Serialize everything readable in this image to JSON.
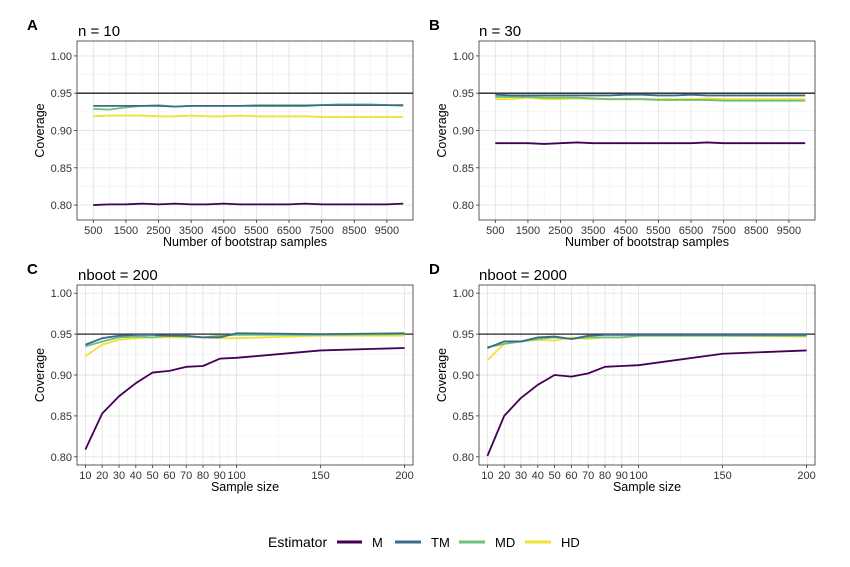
{
  "chart_data": [
    {
      "panel_label": "A",
      "title": "n = 10",
      "type": "line",
      "xlabel": "Number of bootstrap samples",
      "ylabel": "Coverage",
      "xlim": [
        0,
        10300
      ],
      "ylim": [
        0.78,
        1.02
      ],
      "xticks": [
        500,
        1500,
        2500,
        3500,
        4500,
        5500,
        6500,
        7500,
        8500,
        9500
      ],
      "yticks": [
        0.8,
        0.85,
        0.9,
        0.95,
        1.0
      ],
      "reference_line": 0.95,
      "x": [
        500,
        1000,
        1500,
        2000,
        2500,
        3000,
        3500,
        4000,
        4500,
        5000,
        5500,
        6000,
        6500,
        7000,
        7500,
        8000,
        8500,
        9000,
        9500,
        10000
      ],
      "series": [
        {
          "name": "M",
          "values": [
            0.8,
            0.801,
            0.801,
            0.802,
            0.801,
            0.802,
            0.801,
            0.801,
            0.802,
            0.801,
            0.801,
            0.801,
            0.801,
            0.802,
            0.801,
            0.801,
            0.801,
            0.801,
            0.801,
            0.802
          ]
        },
        {
          "name": "TM",
          "values": [
            0.933,
            0.933,
            0.933,
            0.933,
            0.933,
            0.932,
            0.933,
            0.933,
            0.933,
            0.933,
            0.933,
            0.933,
            0.933,
            0.933,
            0.934,
            0.934,
            0.934,
            0.934,
            0.934,
            0.934
          ]
        },
        {
          "name": "MD",
          "values": [
            0.929,
            0.928,
            0.931,
            0.933,
            0.934,
            0.932,
            0.933,
            0.933,
            0.933,
            0.933,
            0.934,
            0.934,
            0.934,
            0.934,
            0.934,
            0.935,
            0.935,
            0.935,
            0.934,
            0.933
          ]
        },
        {
          "name": "HD",
          "values": [
            0.919,
            0.92,
            0.92,
            0.92,
            0.919,
            0.919,
            0.92,
            0.919,
            0.919,
            0.92,
            0.919,
            0.919,
            0.919,
            0.919,
            0.918,
            0.918,
            0.918,
            0.918,
            0.918,
            0.918
          ]
        }
      ]
    },
    {
      "panel_label": "B",
      "title": "n = 30",
      "type": "line",
      "xlabel": "Number of bootstrap samples",
      "ylabel": "Coverage",
      "xlim": [
        0,
        10300
      ],
      "ylim": [
        0.78,
        1.02
      ],
      "xticks": [
        500,
        1500,
        2500,
        3500,
        4500,
        5500,
        6500,
        7500,
        8500,
        9500
      ],
      "yticks": [
        0.8,
        0.85,
        0.9,
        0.95,
        1.0
      ],
      "reference_line": 0.95,
      "x": [
        500,
        1000,
        1500,
        2000,
        2500,
        3000,
        3500,
        4000,
        4500,
        5000,
        5500,
        6000,
        6500,
        7000,
        7500,
        8000,
        8500,
        9000,
        9500,
        10000
      ],
      "series": [
        {
          "name": "M",
          "values": [
            0.883,
            0.883,
            0.883,
            0.882,
            0.883,
            0.884,
            0.883,
            0.883,
            0.883,
            0.883,
            0.883,
            0.883,
            0.883,
            0.884,
            0.883,
            0.883,
            0.883,
            0.883,
            0.883,
            0.883
          ]
        },
        {
          "name": "TM",
          "values": [
            0.948,
            0.947,
            0.947,
            0.947,
            0.947,
            0.947,
            0.947,
            0.947,
            0.948,
            0.948,
            0.947,
            0.947,
            0.948,
            0.947,
            0.947,
            0.947,
            0.947,
            0.947,
            0.947,
            0.947
          ]
        },
        {
          "name": "MD",
          "values": [
            0.945,
            0.945,
            0.945,
            0.944,
            0.944,
            0.944,
            0.943,
            0.942,
            0.942,
            0.942,
            0.941,
            0.941,
            0.941,
            0.941,
            0.94,
            0.94,
            0.94,
            0.94,
            0.94,
            0.94
          ]
        },
        {
          "name": "HD",
          "values": [
            0.942,
            0.942,
            0.944,
            0.942,
            0.942,
            0.943,
            0.942,
            0.942,
            0.942,
            0.942,
            0.942,
            0.942,
            0.942,
            0.943,
            0.942,
            0.942,
            0.942,
            0.942,
            0.942,
            0.942
          ]
        }
      ]
    },
    {
      "panel_label": "C",
      "title": "nboot = 200",
      "type": "line",
      "xlabel": "Sample size",
      "ylabel": "Coverage",
      "xlim": [
        5,
        205
      ],
      "ylim": [
        0.79,
        1.01
      ],
      "xticks": [
        10,
        20,
        30,
        40,
        50,
        60,
        70,
        80,
        90,
        100,
        150,
        200
      ],
      "yticks": [
        0.8,
        0.85,
        0.9,
        0.95,
        1.0
      ],
      "reference_line": 0.95,
      "x": [
        10,
        20,
        30,
        40,
        50,
        60,
        70,
        80,
        90,
        100,
        150,
        200
      ],
      "series": [
        {
          "name": "M",
          "values": [
            0.809,
            0.853,
            0.874,
            0.89,
            0.903,
            0.905,
            0.91,
            0.911,
            0.92,
            0.921,
            0.93,
            0.933
          ]
        },
        {
          "name": "TM",
          "values": [
            0.937,
            0.945,
            0.948,
            0.949,
            0.949,
            0.948,
            0.948,
            0.946,
            0.946,
            0.951,
            0.95,
            0.951
          ]
        },
        {
          "name": "MD",
          "values": [
            0.935,
            0.941,
            0.946,
            0.947,
            0.946,
            0.948,
            0.947,
            0.946,
            0.948,
            0.949,
            0.949,
            0.95
          ]
        },
        {
          "name": "HD",
          "values": [
            0.923,
            0.937,
            0.943,
            0.945,
            0.946,
            0.946,
            0.946,
            0.946,
            0.945,
            0.945,
            0.948,
            0.948
          ]
        }
      ]
    },
    {
      "panel_label": "D",
      "title": "nboot = 2000",
      "type": "line",
      "xlabel": "Sample size",
      "ylabel": "Coverage",
      "xlim": [
        5,
        205
      ],
      "ylim": [
        0.79,
        1.01
      ],
      "xticks": [
        10,
        20,
        30,
        40,
        50,
        60,
        70,
        80,
        90,
        100,
        150,
        200
      ],
      "yticks": [
        0.8,
        0.85,
        0.9,
        0.95,
        1.0
      ],
      "reference_line": 0.95,
      "x": [
        10,
        20,
        30,
        40,
        50,
        60,
        70,
        80,
        90,
        100,
        150,
        200
      ],
      "series": [
        {
          "name": "M",
          "values": [
            0.801,
            0.85,
            0.872,
            0.888,
            0.9,
            0.898,
            0.902,
            0.91,
            0.911,
            0.912,
            0.926,
            0.93
          ]
        },
        {
          "name": "TM",
          "values": [
            0.933,
            0.941,
            0.941,
            0.946,
            0.947,
            0.944,
            0.948,
            0.949,
            0.949,
            0.949,
            0.949,
            0.949
          ]
        },
        {
          "name": "MD",
          "values": [
            0.934,
            0.938,
            0.941,
            0.944,
            0.946,
            0.944,
            0.946,
            0.946,
            0.946,
            0.948,
            0.948,
            0.948
          ]
        },
        {
          "name": "HD",
          "values": [
            0.918,
            0.938,
            0.941,
            0.943,
            0.942,
            0.946,
            0.944,
            0.946,
            0.946,
            0.948,
            0.948,
            0.947
          ]
        }
      ]
    }
  ],
  "legend": {
    "title": "Estimator",
    "items": [
      {
        "label": "M",
        "color": "#440154"
      },
      {
        "label": "TM",
        "color": "#3B6A8C"
      },
      {
        "label": "MD",
        "color": "#6CC07A"
      },
      {
        "label": "HD",
        "color": "#F1E234"
      }
    ]
  },
  "colors": {
    "M": "#440154",
    "TM": "#3B6A8C",
    "MD": "#6CC07A",
    "HD": "#F1E234",
    "panel_border": "#333333",
    "grid_major": "#e3e3e3",
    "grid_minor": "#f1f1f1",
    "reference_line": "#222222"
  }
}
